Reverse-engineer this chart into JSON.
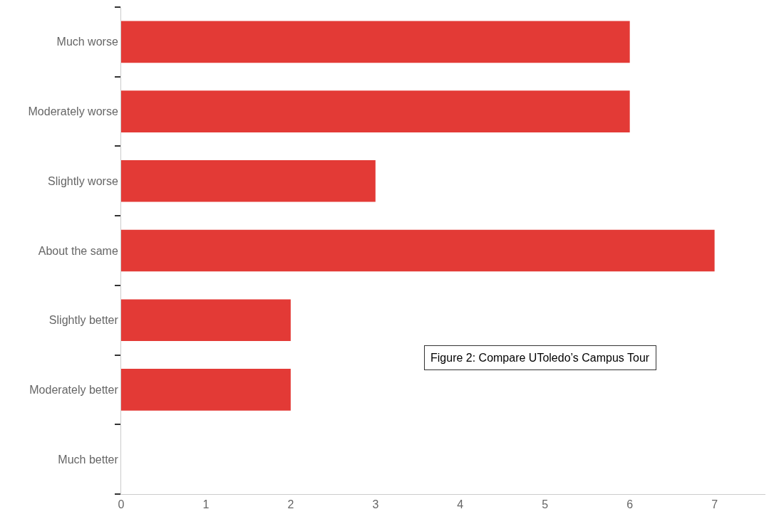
{
  "chart_data": {
    "type": "bar",
    "orientation": "horizontal",
    "categories": [
      "Much worse",
      "Moderately worse",
      "Slightly worse",
      "About the same",
      "Slightly better",
      "Moderately better",
      "Much better"
    ],
    "values": [
      6,
      6,
      3,
      7,
      2,
      2,
      0
    ],
    "color": "#e33a36",
    "xlim": [
      0,
      7.6
    ],
    "xticks": [
      0,
      1,
      2,
      3,
      4,
      5,
      6,
      7
    ],
    "grid": false,
    "annotations": [
      "Figure 2: Compare UToledo’s Campus Tour"
    ]
  }
}
